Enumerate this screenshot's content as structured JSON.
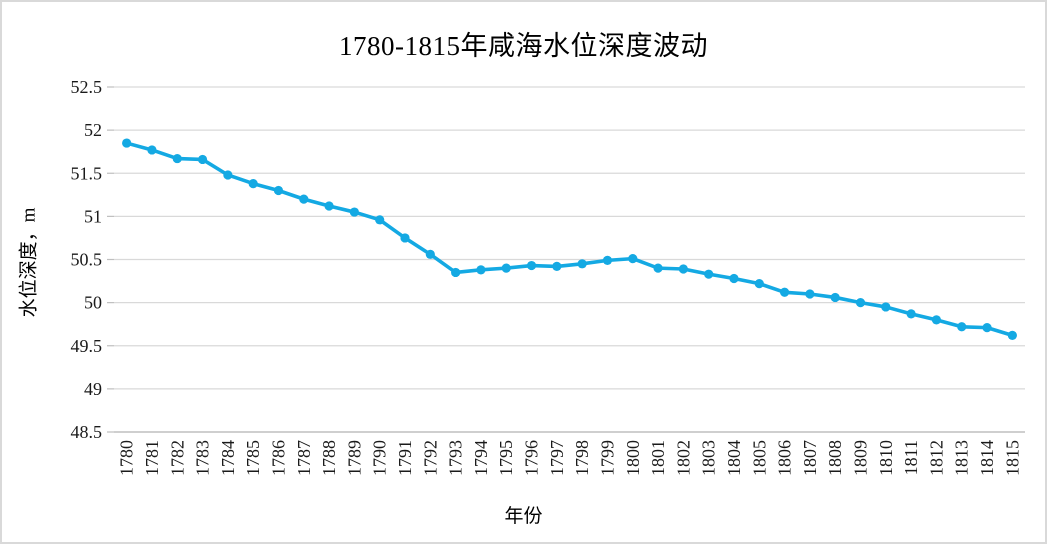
{
  "chart_data": {
    "type": "line",
    "title": "1780-1815年咸海水位深度波动",
    "xlabel": "年份",
    "ylabel": "水位深度，m",
    "x": [
      "1780",
      "1781",
      "1782",
      "1783",
      "1784",
      "1785",
      "1786",
      "1787",
      "1788",
      "1789",
      "1790",
      "1791",
      "1792",
      "1793",
      "1794",
      "1795",
      "1796",
      "1797",
      "1798",
      "1799",
      "1800",
      "1801",
      "1802",
      "1803",
      "1804",
      "1805",
      "1806",
      "1807",
      "1808",
      "1809",
      "1810",
      "1811",
      "1812",
      "1813",
      "1814",
      "1815"
    ],
    "series": [
      {
        "name": "水位深度",
        "values": [
          51.85,
          51.77,
          51.67,
          51.66,
          51.48,
          51.38,
          51.3,
          51.2,
          51.12,
          51.05,
          50.96,
          50.75,
          50.56,
          50.35,
          50.38,
          50.4,
          50.43,
          50.42,
          50.45,
          50.49,
          50.51,
          50.4,
          50.39,
          50.33,
          50.28,
          50.22,
          50.12,
          50.1,
          50.06,
          50.0,
          49.95,
          49.87,
          49.8,
          49.72,
          49.71,
          49.62
        ]
      }
    ],
    "ylim": [
      48.5,
      52.5
    ],
    "y_tick_step": 0.5,
    "y_tick_labels": [
      "48.5",
      "49",
      "49.5",
      "50",
      "50.5",
      "51",
      "51.5",
      "52",
      "52.5"
    ],
    "grid": "horizontal",
    "legend": "none",
    "marker": "circle",
    "colors": {
      "line": "#14A9E3",
      "marker": "#14A9E3",
      "gridline": "#D9D9D9",
      "axis_line": "#BFBFBF",
      "tick_text": "#1a1a1a",
      "title_text": "#000000",
      "frame_border": "#D9D9D9"
    }
  }
}
